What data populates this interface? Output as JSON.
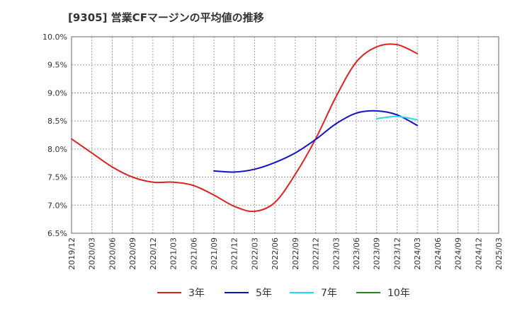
{
  "chart_data": {
    "type": "line",
    "title": "[9305]  営業CFマージンの平均値の推移",
    "x_categories": [
      "2019/12",
      "2020/03",
      "2020/06",
      "2020/09",
      "2020/12",
      "2021/03",
      "2021/06",
      "2021/09",
      "2021/12",
      "2022/03",
      "2022/06",
      "2022/09",
      "2022/12",
      "2023/03",
      "2023/06",
      "2023/09",
      "2023/12",
      "2024/03",
      "2024/06",
      "2024/09",
      "2024/12",
      "2025/03"
    ],
    "y_ticks": [
      "10.0%",
      "9.5%",
      "9.0%",
      "8.5%",
      "8.0%",
      "7.5%",
      "7.0%",
      "6.5%"
    ],
    "ylim": [
      6.5,
      10.0
    ],
    "grid": true,
    "legend_position": "bottom",
    "series": [
      {
        "name": "3年",
        "color": "#dd2222",
        "values": [
          8.18,
          7.93,
          7.68,
          7.5,
          7.41,
          7.41,
          7.35,
          7.18,
          6.98,
          6.89,
          7.05,
          7.55,
          8.18,
          8.93,
          9.55,
          9.82,
          9.86,
          9.7,
          null,
          null,
          null,
          null
        ]
      },
      {
        "name": "5年",
        "color": "#1111cc",
        "values": [
          null,
          null,
          null,
          null,
          null,
          null,
          null,
          7.61,
          7.59,
          7.64,
          7.76,
          7.93,
          8.17,
          8.45,
          8.64,
          8.68,
          8.61,
          8.42,
          null,
          null,
          null,
          null
        ]
      },
      {
        "name": "7年",
        "color": "#22dddd",
        "values": [
          null,
          null,
          null,
          null,
          null,
          null,
          null,
          null,
          null,
          null,
          null,
          null,
          null,
          null,
          null,
          8.54,
          8.58,
          8.52,
          null,
          null,
          null,
          null
        ]
      },
      {
        "name": "10年",
        "color": "#228822",
        "values": [
          null,
          null,
          null,
          null,
          null,
          null,
          null,
          null,
          null,
          null,
          null,
          null,
          null,
          null,
          null,
          null,
          null,
          null,
          null,
          null,
          null,
          null
        ]
      }
    ]
  }
}
